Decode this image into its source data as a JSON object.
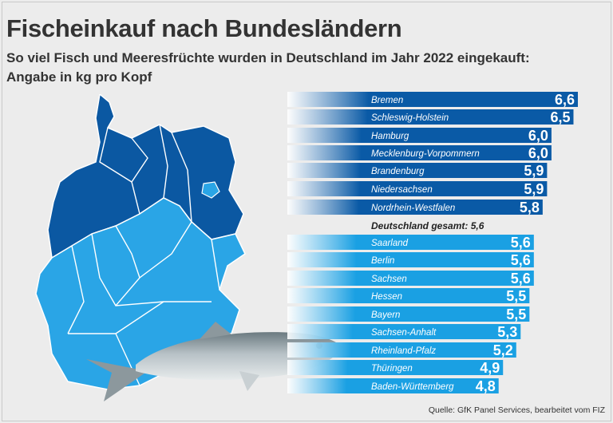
{
  "title": "Fischeinkauf nach Bundesländern",
  "subtitle": "So viel Fisch und Meeresfrüchte wurden in Deutschland im Jahr 2022 eingekauft:",
  "unit_line": "Angabe in kg pro Kopf",
  "average": "Deutschland gesamt: 5,6",
  "source": "Quelle: GfK Panel Services, bearbeitet vom FIZ",
  "colors": {
    "above": "#0a5aa6",
    "below": "#1aa0e3",
    "map_dark": "#0b58a2",
    "map_light": "#2aa5e6"
  },
  "chart_data": {
    "type": "bar",
    "orientation": "horizontal",
    "categories": [
      "Bremen",
      "Schleswig-Holstein",
      "Hamburg",
      "Mecklenburg-Vorpommern",
      "Brandenburg",
      "Niedersachsen",
      "Nordrhein-Westfalen",
      "Saarland",
      "Berlin",
      "Sachsen",
      "Hessen",
      "Bayern",
      "Sachsen-Anhalt",
      "Rheinland-Pfalz",
      "Thüringen",
      "Baden-Württemberg"
    ],
    "values": [
      6.6,
      6.5,
      6.0,
      6.0,
      5.9,
      5.9,
      5.8,
      5.6,
      5.6,
      5.6,
      5.5,
      5.5,
      5.3,
      5.2,
      4.9,
      4.8
    ],
    "value_labels": [
      "6,6",
      "6,5",
      "6,0",
      "6,0",
      "5,9",
      "5,9",
      "5,8",
      "5,6",
      "5,6",
      "5,6",
      "5,5",
      "5,5",
      "5,3",
      "5,2",
      "4,9",
      "4,8"
    ],
    "average_value": 5.6
  }
}
